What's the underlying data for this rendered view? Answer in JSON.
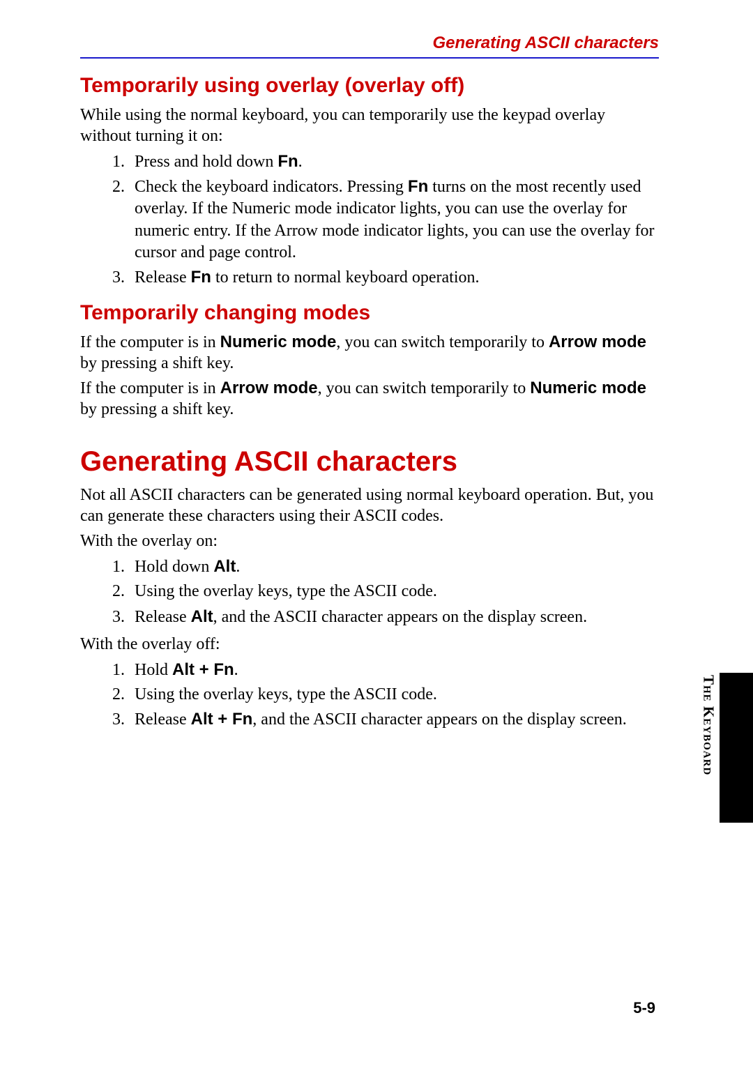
{
  "colors": {
    "heading": "#cc0000",
    "rule": "#1a1acc",
    "text": "#000000",
    "tab_bg": "#000000",
    "page_bg": "#ffffff"
  },
  "typography": {
    "body_family": "Times New Roman",
    "heading_family": "Arial",
    "body_size_pt": 18,
    "h1_size_pt": 30,
    "h2_size_pt": 22
  },
  "running_head": "Generating ASCII characters",
  "section1": {
    "title": "Temporarily using overlay (overlay off)",
    "intro": "While using the normal keyboard, you can temporarily use the keypad overlay without turning it on:",
    "step1_a": "Press and hold down ",
    "step1_b": "Fn",
    "step1_c": ".",
    "step2_a": "Check the keyboard indicators. Pressing ",
    "step2_b": "Fn",
    "step2_c": " turns on the most recently used overlay. If the Numeric mode indicator lights, you can use the overlay for numeric entry. If the Arrow mode indicator lights, you can use the overlay for cursor and page control.",
    "step3_a": "Release ",
    "step3_b": "Fn",
    "step3_c": " to return to normal keyboard operation."
  },
  "section2": {
    "title": "Temporarily changing modes",
    "p1_a": "If the computer is in ",
    "p1_b": "Numeric mode",
    "p1_c": ", you can switch temporarily to ",
    "p1_d": "Arrow mode",
    "p1_e": " by pressing a shift key.",
    "p2_a": "If the computer is in ",
    "p2_b": "Arrow mode",
    "p2_c": ", you can switch temporarily to ",
    "p2_d": "Numeric mode",
    "p2_e": " by pressing a shift key."
  },
  "section3": {
    "title": "Generating ASCII characters",
    "intro": "Not all ASCII characters can be generated using normal keyboard operation. But, you can generate these characters using their ASCII codes.",
    "on_label": "With the overlay on:",
    "on_step1_a": "Hold down ",
    "on_step1_b": "Alt",
    "on_step1_c": ".",
    "on_step2": "Using the overlay keys, type the ASCII code.",
    "on_step3_a": "Release ",
    "on_step3_b": "Alt",
    "on_step3_c": ", and the ASCII character appears on the display screen.",
    "off_label": "With the overlay off:",
    "off_step1_a": "Hold ",
    "off_step1_b": "Alt + Fn",
    "off_step1_c": ".",
    "off_step2": "Using the overlay keys, type the ASCII code.",
    "off_step3_a": "Release ",
    "off_step3_b": "Alt + Fn",
    "off_step3_c": ", and the ASCII character appears on the display screen."
  },
  "side_label": "The Keyboard",
  "page_number": "5-9"
}
